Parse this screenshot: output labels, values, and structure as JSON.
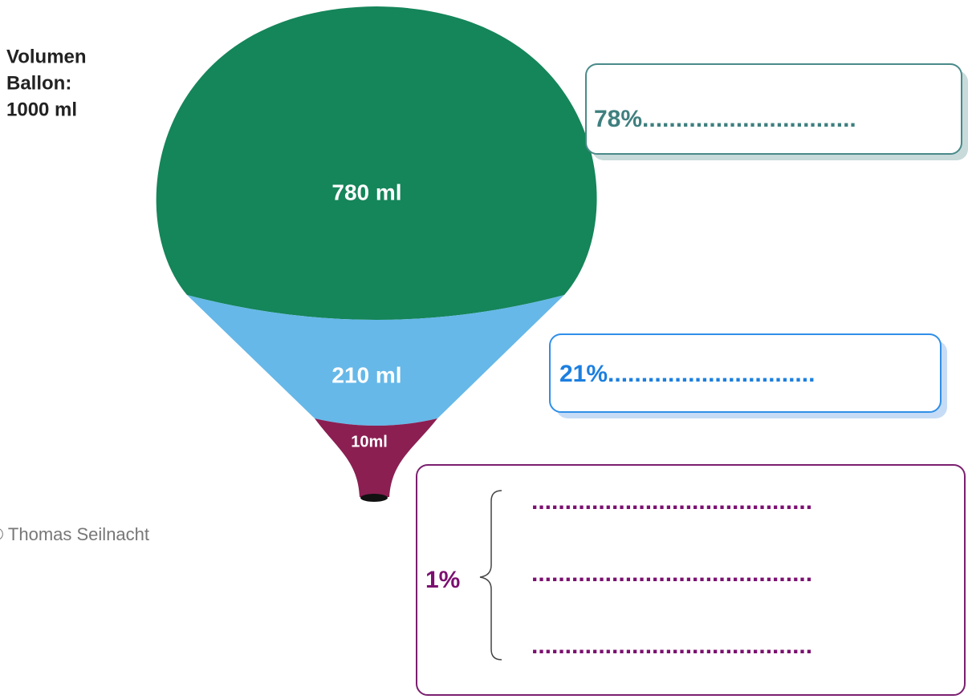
{
  "balloon": {
    "caption": [
      "Volumen",
      "Ballon:",
      "1000 ml"
    ],
    "segments": [
      {
        "label": "780 ml"
      },
      {
        "label": "210 ml"
      },
      {
        "label": "10ml"
      }
    ],
    "credit": "© Thomas Seilnacht"
  },
  "answers": [
    {
      "text": "78%................................"
    },
    {
      "text": "21%..............................."
    },
    {
      "prefix": "1%",
      "lines": [
        "..........................................",
        "..........................................",
        ".........................................."
      ]
    }
  ]
}
